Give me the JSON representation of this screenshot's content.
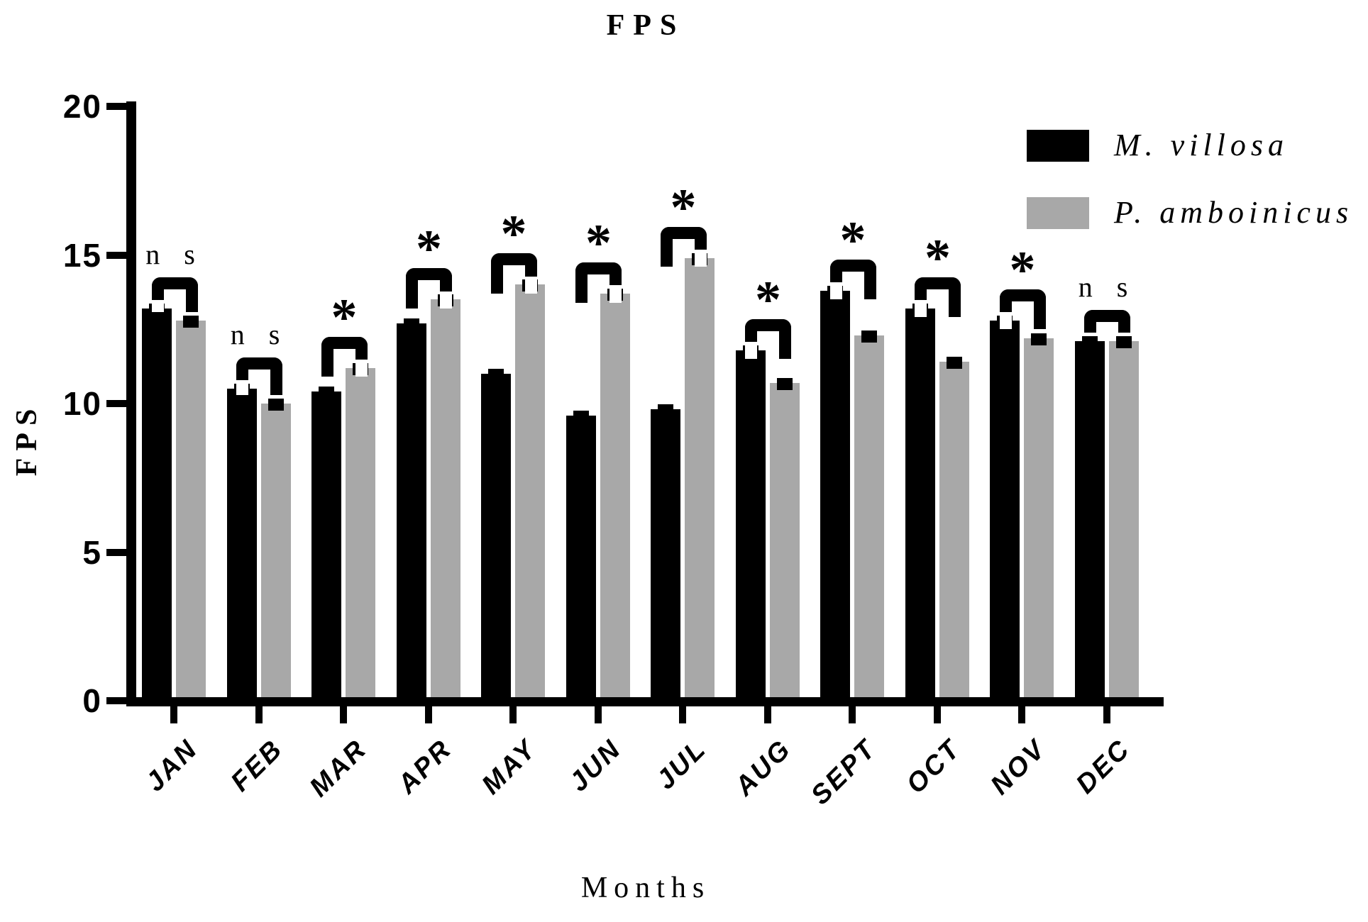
{
  "title": "FPS",
  "y_axis": {
    "label": "FPS",
    "ticks": [
      "0",
      "5",
      "10",
      "15",
      "20"
    ]
  },
  "x_axis": {
    "label": "Months"
  },
  "legend": {
    "items": [
      {
        "label": "M. villosa",
        "color": "#000000"
      },
      {
        "label": "P. amboinicus",
        "color": "#a8a8a8"
      }
    ]
  },
  "chart_data": {
    "type": "bar",
    "title": "FPS",
    "xlabel": "Months",
    "ylabel": "FPS",
    "ylim": [
      0,
      20
    ],
    "yticks": [
      0,
      5,
      10,
      15,
      20
    ],
    "grid": false,
    "legend_position": "top-right",
    "categories": [
      "JAN",
      "FEB",
      "MAR",
      "APR",
      "MAY",
      "JUN",
      "JUL",
      "AUG",
      "SEPT",
      "OCT",
      "NOV",
      "DEC"
    ],
    "series": [
      {
        "name": "M. villosa",
        "color": "#000000",
        "values": [
          13.2,
          10.5,
          10.4,
          12.7,
          11.0,
          9.6,
          9.8,
          11.8,
          13.8,
          13.2,
          12.8,
          12.1
        ],
        "error": 0.15
      },
      {
        "name": "P. amboinicus",
        "color": "#a8a8a8",
        "values": [
          12.8,
          10.0,
          11.2,
          13.5,
          14.0,
          13.7,
          14.9,
          10.7,
          12.3,
          11.4,
          12.2,
          12.1
        ],
        "error": 0.15
      }
    ],
    "significance": [
      "n s",
      "n s",
      "*",
      "*",
      "*",
      "*",
      "*",
      "*",
      "*",
      "*",
      "*",
      "n s"
    ]
  }
}
